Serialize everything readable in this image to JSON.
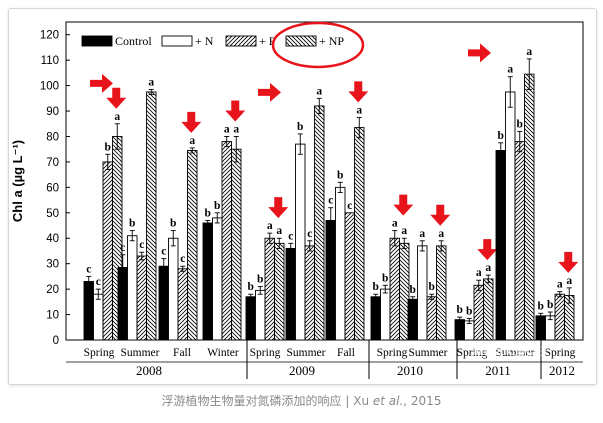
{
  "caption": {
    "text_before": "浮游植物生物量对氮磷添加的响应 | Xu ",
    "et_al": "et al.",
    "text_after": ", 2015"
  },
  "watermark": "algaebio藻类研",
  "colors": {
    "control": "#000000",
    "arrow": "#e8141c",
    "circle": "#e8141c",
    "caption": "#8a8a8a"
  },
  "chart_data": {
    "type": "bar",
    "ylabel": "Chl a (µg L⁻¹)",
    "ylim": [
      0,
      125
    ],
    "yticks": [
      0,
      10,
      20,
      30,
      40,
      50,
      60,
      70,
      80,
      90,
      100,
      110,
      120
    ],
    "grid": false,
    "legend": {
      "placement": "top-left",
      "entries": [
        {
          "label": "Control",
          "pattern": "solid"
        },
        {
          "label": "+ N",
          "pattern": "open"
        },
        {
          "label": "+ P",
          "pattern": "hatch-right"
        },
        {
          "label": "+ NP",
          "pattern": "hatch-left"
        }
      ]
    },
    "series_names": [
      "Control",
      "+ N",
      "+ P",
      "+ NP"
    ],
    "years": [
      {
        "label": "2008",
        "categories": [
          "Spring",
          "Summer",
          "Fall",
          "Winter"
        ]
      },
      {
        "label": "2009",
        "categories": [
          "Spring",
          "Summer",
          "Fall"
        ]
      },
      {
        "label": "2010",
        "categories": [
          "Spring",
          "Summer"
        ]
      },
      {
        "label": "2011",
        "categories": [
          "Spring",
          "Summer"
        ]
      },
      {
        "label": "2012",
        "categories": [
          "Spring"
        ]
      }
    ],
    "groups": [
      {
        "year": "2008",
        "season": "Spring",
        "values": [
          23,
          18,
          70,
          80
        ],
        "errors": [
          2,
          2,
          3,
          5
        ],
        "letters": [
          "c",
          "c",
          "b",
          "a"
        ],
        "arrow": "down"
      },
      {
        "year": "2008",
        "season": "Summer",
        "values": [
          28.5,
          41,
          33,
          97.5
        ],
        "errors": [
          5,
          2,
          1.5,
          1
        ],
        "letters": [
          "c",
          "b",
          "c",
          "a"
        ],
        "arrow": "right"
      },
      {
        "year": "2008",
        "season": "Fall",
        "values": [
          29,
          40,
          28,
          74.5
        ],
        "errors": [
          3,
          3,
          1,
          1
        ],
        "letters": [
          "c",
          "b",
          "c",
          "a"
        ],
        "arrow": "down"
      },
      {
        "year": "2008",
        "season": "Winter",
        "values": [
          46,
          48,
          78,
          75
        ],
        "errors": [
          1,
          2,
          2,
          5
        ],
        "letters": [
          "b",
          "b",
          "a",
          "a"
        ],
        "arrow": "down"
      },
      {
        "year": "2009",
        "season": "Spring",
        "values": [
          17,
          19.5,
          40,
          38
        ],
        "errors": [
          1,
          1.5,
          2,
          2
        ],
        "letters": [
          "b",
          "b",
          "a",
          "a"
        ],
        "arrow": "down"
      },
      {
        "year": "2009",
        "season": "Summer",
        "values": [
          36,
          77,
          37,
          92
        ],
        "errors": [
          2,
          4,
          2,
          3
        ],
        "letters": [
          "c",
          "b",
          "c",
          "a"
        ],
        "arrow": "right"
      },
      {
        "year": "2009",
        "season": "Fall",
        "values": [
          47,
          60,
          50,
          83.5
        ],
        "errors": [
          5,
          2,
          0,
          4
        ],
        "letters": [
          "c",
          "b",
          "c",
          "a"
        ],
        "arrow": "down"
      },
      {
        "year": "2010",
        "season": "Spring",
        "values": [
          17,
          20,
          40,
          38
        ],
        "errors": [
          1,
          1.5,
          3,
          2
        ],
        "letters": [
          "b",
          "b",
          "a",
          "a"
        ],
        "arrow": "down"
      },
      {
        "year": "2010",
        "season": "Summer",
        "values": [
          16,
          37,
          17,
          37
        ],
        "errors": [
          1,
          2,
          1,
          2
        ],
        "letters": [
          "b",
          "a",
          "b",
          "a"
        ],
        "arrow": "down"
      },
      {
        "year": "2011",
        "season": "Spring",
        "values": [
          8,
          7.5,
          21.5,
          24
        ],
        "errors": [
          1,
          1,
          2,
          1.5
        ],
        "letters": [
          "b",
          "b",
          "a",
          "a"
        ],
        "arrow": "down"
      },
      {
        "year": "2011",
        "season": "Summer",
        "values": [
          74.5,
          97.5,
          78,
          104.5
        ],
        "errors": [
          3,
          6,
          4,
          6
        ],
        "letters": [
          "b",
          "a",
          "b",
          "a"
        ],
        "arrow": "right"
      },
      {
        "year": "2012",
        "season": "Spring",
        "values": [
          9.5,
          9.5,
          18,
          17.5
        ],
        "errors": [
          1,
          1.5,
          1,
          3
        ],
        "letters": [
          "b",
          "b",
          "a",
          "a"
        ],
        "arrow": "down"
      }
    ]
  }
}
